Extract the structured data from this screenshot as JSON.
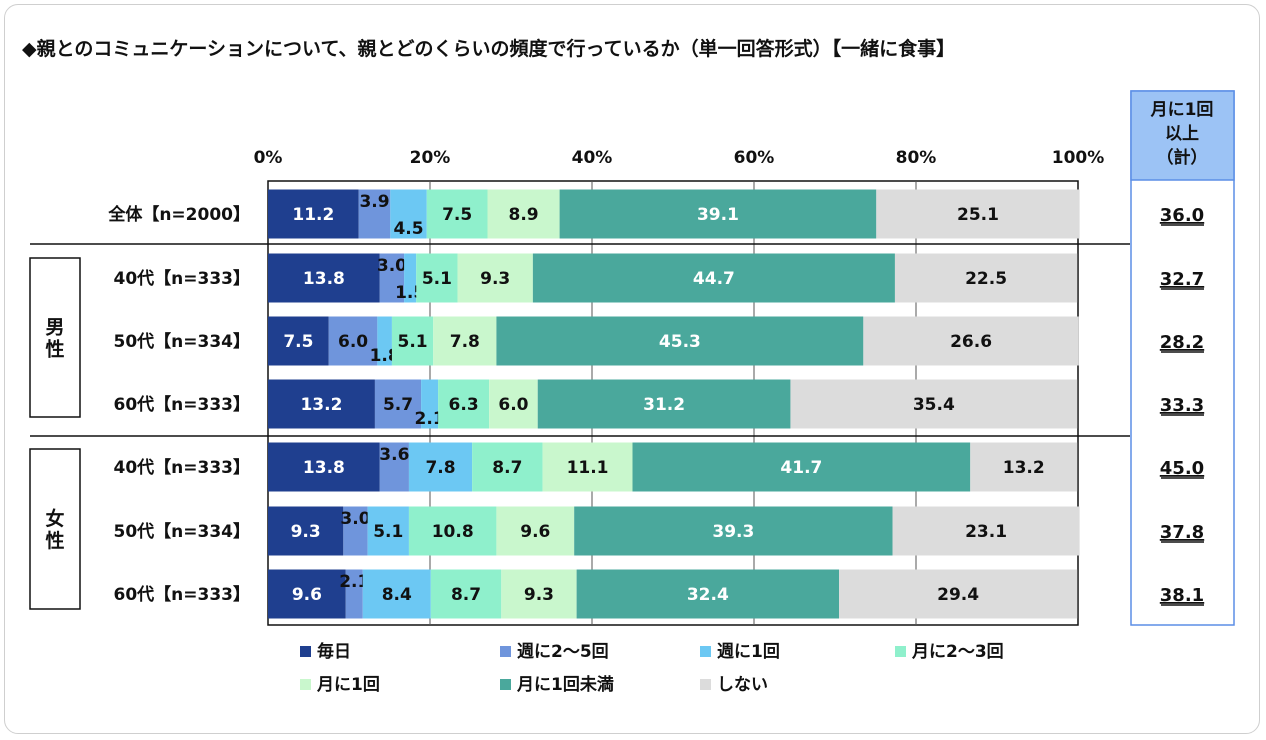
{
  "title": "◆親とのコミュニケーションについて、親とどのくらいの頻度で行っているか（単一回答形式）【一緒に食事】",
  "summary_header": [
    "月に1回",
    "以上",
    "（計）"
  ],
  "groups": [
    {
      "label": "男性",
      "rows": [
        1,
        3
      ]
    },
    {
      "label": "女性",
      "rows": [
        4,
        6
      ]
    }
  ],
  "chart_data": {
    "type": "bar",
    "orientation": "horizontal",
    "stacked": true,
    "xlim": [
      0,
      100
    ],
    "x_ticks": [
      "0%",
      "20%",
      "40%",
      "60%",
      "80%",
      "100%"
    ],
    "categories": [
      "全体【n=2000】",
      "40代【n=333】",
      "50代【n=334】",
      "60代【n=333】",
      "40代【n=333】",
      "50代【n=334】",
      "60代【n=333】"
    ],
    "series": [
      {
        "name": "毎日",
        "color": "#1f3f8f",
        "values": [
          11.2,
          13.8,
          7.5,
          13.2,
          13.8,
          9.3,
          9.6
        ]
      },
      {
        "name": "週に2～5回",
        "color": "#6f95dc",
        "values": [
          3.9,
          3.0,
          6.0,
          5.7,
          3.6,
          3.0,
          2.1
        ]
      },
      {
        "name": "週に1回",
        "color": "#6cc8f3",
        "values": [
          4.5,
          1.5,
          1.8,
          2.1,
          7.8,
          5.1,
          8.4
        ]
      },
      {
        "name": "月に2～3回",
        "color": "#8ff0cc",
        "values": [
          7.5,
          5.1,
          5.1,
          6.3,
          8.7,
          10.8,
          8.7
        ]
      },
      {
        "name": "月に1回",
        "color": "#c9f7cd",
        "values": [
          8.9,
          9.3,
          7.8,
          6.0,
          11.1,
          9.6,
          9.3
        ]
      },
      {
        "name": "月に1回未満",
        "color": "#4aa89c",
        "values": [
          39.1,
          44.7,
          45.3,
          31.2,
          41.7,
          39.3,
          32.4
        ]
      },
      {
        "name": "しない",
        "color": "#dcdcdc",
        "values": [
          25.1,
          22.5,
          26.6,
          35.4,
          13.2,
          23.1,
          29.4
        ]
      }
    ],
    "summary_values": [
      "36.0",
      "32.7",
      "28.2",
      "33.3",
      "45.0",
      "37.8",
      "38.1"
    ],
    "legend_position": "bottom"
  }
}
